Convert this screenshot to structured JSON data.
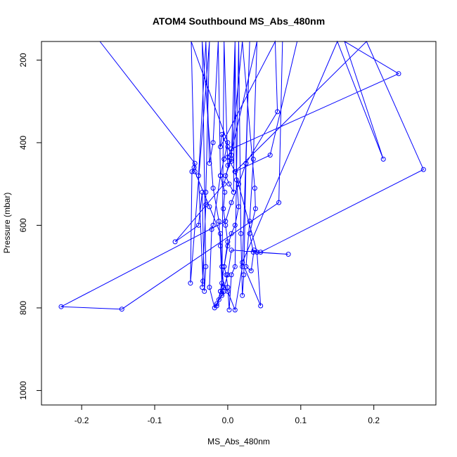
{
  "chart_data": {
    "type": "line",
    "title": "ATOM4 Southbound MS_Abs_480nm",
    "xlabel": "MS_Abs_480nm",
    "ylabel": "Pressure (mbar)",
    "xlim": [
      -0.255,
      0.285
    ],
    "ylim": [
      1035,
      155
    ],
    "y_reversed": true,
    "x_ticks": [
      -0.2,
      -0.1,
      0.0,
      0.1,
      0.2
    ],
    "x_tick_labels": [
      "-0.2",
      "-0.1",
      "0.0",
      "0.1",
      "0.2"
    ],
    "y_ticks": [
      200,
      400,
      600,
      800,
      1000
    ],
    "y_tick_labels": [
      "200",
      "400",
      "600",
      "800",
      "1000"
    ],
    "grid": false,
    "series_color": "#0000ff",
    "marker": "open-circle",
    "series": [
      {
        "points": [
          [
            -0.175,
            155
          ],
          [
            -0.045,
            450
          ],
          [
            -0.045,
            470
          ],
          [
            -0.025,
            555
          ],
          [
            -0.01,
            620
          ],
          [
            -0.008,
            700
          ],
          [
            -0.005,
            760
          ],
          [
            -0.012,
            780
          ],
          [
            -0.015,
            795
          ],
          [
            -0.01,
            760
          ],
          [
            -0.005,
            700
          ],
          [
            0.0,
            640
          ],
          [
            -0.003,
            600
          ],
          [
            -0.006,
            560
          ],
          [
            -0.004,
            520
          ],
          [
            -0.01,
            480
          ],
          [
            -0.005,
            440
          ],
          [
            0.0,
            400
          ],
          [
            -0.05,
            155
          ],
          [
            -0.046,
            460
          ],
          [
            -0.049,
            470
          ],
          [
            -0.051,
            740
          ],
          [
            -0.025,
            155
          ],
          [
            -0.03,
            520
          ],
          [
            -0.03,
            550
          ],
          [
            -0.035,
            750
          ],
          [
            -0.034,
            735
          ],
          [
            -0.04,
            480
          ],
          [
            -0.03,
            155
          ],
          [
            -0.025,
            450
          ],
          [
            -0.02,
            400
          ],
          [
            -0.013,
            155
          ],
          [
            -0.01,
            480
          ],
          [
            -0.02,
            600
          ],
          [
            -0.022,
            610
          ],
          [
            -0.025,
            750
          ],
          [
            -0.018,
            800
          ],
          [
            -0.015,
            790
          ],
          [
            -0.008,
            770
          ],
          [
            -0.005,
            155
          ],
          [
            0.0,
            455
          ],
          [
            0.005,
            445
          ],
          [
            0.01,
            155
          ],
          [
            0.005,
            440
          ],
          [
            -0.003,
            480
          ],
          [
            0.002,
            500
          ],
          [
            0.008,
            520
          ],
          [
            0.01,
            155
          ],
          [
            0.012,
            490
          ],
          [
            0.015,
            555
          ],
          [
            0.01,
            600
          ],
          [
            0.005,
            620
          ],
          [
            0.0,
            650
          ],
          [
            -0.005,
            700
          ],
          [
            -0.002,
            720
          ],
          [
            0.0,
            750
          ],
          [
            0.002,
            805
          ],
          [
            0.005,
            720
          ],
          [
            0.01,
            700
          ],
          [
            0.015,
            155
          ],
          [
            0.018,
            620
          ],
          [
            0.02,
            770
          ],
          [
            0.022,
            720
          ],
          [
            0.025,
            450
          ],
          [
            0.03,
            155
          ],
          [
            0.02,
            700
          ],
          [
            0.01,
            805
          ],
          [
            0.0,
            760
          ],
          [
            -0.008,
            740
          ],
          [
            -0.01,
            650
          ],
          [
            -0.012,
            590
          ],
          [
            -0.02,
            510
          ],
          [
            -0.035,
            155
          ],
          [
            -0.03,
            700
          ],
          [
            -0.032,
            760
          ],
          [
            -0.035,
            520
          ],
          [
            -0.04,
            600
          ],
          [
            -0.072,
            640
          ],
          [
            -0.005,
            500
          ],
          [
            0.04,
            155
          ],
          [
            0.035,
            440
          ],
          [
            0.03,
            590
          ],
          [
            0.025,
            700
          ],
          [
            0.032,
            710
          ],
          [
            0.036,
            660
          ],
          [
            0.04,
            665
          ],
          [
            0.083,
            670
          ],
          [
            0.035,
            665
          ],
          [
            0.03,
            620
          ],
          [
            0.038,
            560
          ],
          [
            0.037,
            510
          ],
          [
            0.02,
            155
          ],
          [
            0.005,
            430
          ],
          [
            0.0,
            410
          ],
          [
            -0.008,
            380
          ],
          [
            -0.01,
            410
          ],
          [
            0.065,
            155
          ],
          [
            0.068,
            325
          ],
          [
            0.025,
            450
          ],
          [
            0.015,
            500
          ],
          [
            0.005,
            545
          ],
          [
            -0.003,
            590
          ],
          [
            -0.228,
            797
          ],
          [
            -0.145,
            803
          ],
          [
            0.07,
            545
          ],
          [
            0.075,
            155
          ],
          [
            0.095,
            155
          ],
          [
            0.058,
            430
          ],
          [
            0.01,
            470
          ],
          [
            0.04,
            665
          ],
          [
            0.045,
            795
          ],
          [
            0.02,
            690
          ],
          [
            0.15,
            155
          ],
          [
            0.213,
            440
          ],
          [
            0.16,
            155
          ],
          [
            0.234,
            233
          ],
          [
            0.005,
            415
          ],
          [
            0.0,
            435
          ],
          [
            0.01,
            470
          ],
          [
            0.19,
            155
          ],
          [
            0.268,
            465
          ],
          [
            0.045,
            665
          ],
          [
            0.005,
            660
          ],
          [
            0.0,
            720
          ],
          [
            -0.005,
            750
          ],
          [
            -0.01,
            760
          ],
          [
            -0.008,
            765
          ]
        ]
      }
    ]
  }
}
